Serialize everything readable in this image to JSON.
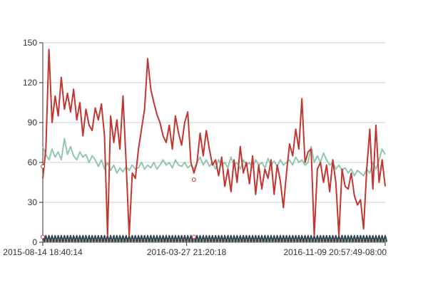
{
  "chart_data": {
    "type": "line",
    "title": "",
    "xlabel": "",
    "ylabel": "",
    "ylim": [
      0,
      150
    ],
    "yticks": [
      0,
      30,
      60,
      90,
      120,
      150
    ],
    "x_tick_labels": [
      "2015-08-14 18:40:14",
      "2016-03-27 21:20:18",
      "2016-11-09 20:57:49-08:00"
    ],
    "grid": true,
    "legend": "none",
    "series": [
      {
        "color": "#c23531",
        "points": [
          [
            0,
            48
          ],
          [
            1,
            70
          ],
          [
            2,
            145
          ],
          [
            3,
            90
          ],
          [
            4,
            110
          ],
          [
            5,
            95
          ],
          [
            6,
            124
          ],
          [
            7,
            100
          ],
          [
            8,
            112
          ],
          [
            9,
            98
          ],
          [
            10,
            115
          ],
          [
            11,
            92
          ],
          [
            12,
            105
          ],
          [
            13,
            80
          ],
          [
            14,
            100
          ],
          [
            15,
            88
          ],
          [
            16,
            84
          ],
          [
            17,
            101
          ],
          [
            18,
            92
          ],
          [
            19,
            104
          ],
          [
            20,
            80
          ],
          [
            21,
            5
          ],
          [
            22,
            95
          ],
          [
            23,
            75
          ],
          [
            24,
            92
          ],
          [
            25,
            70
          ],
          [
            26,
            110
          ],
          [
            27,
            60
          ],
          [
            28,
            5
          ],
          [
            29,
            52
          ],
          [
            30,
            48
          ],
          [
            31,
            70
          ],
          [
            32,
            85
          ],
          [
            33,
            100
          ],
          [
            34,
            138
          ],
          [
            35,
            115
          ],
          [
            36,
            105
          ],
          [
            37,
            96
          ],
          [
            38,
            90
          ],
          [
            39,
            80
          ],
          [
            40,
            75
          ],
          [
            41,
            88
          ],
          [
            42,
            70
          ],
          [
            43,
            95
          ],
          [
            44,
            82
          ],
          [
            45,
            73
          ],
          [
            46,
            90
          ],
          [
            47,
            98
          ],
          [
            48,
            60
          ],
          [
            49,
            52
          ],
          [
            50,
            60
          ],
          [
            51,
            82
          ],
          [
            52,
            65
          ],
          [
            53,
            84
          ],
          [
            54,
            70
          ],
          [
            55,
            58
          ],
          [
            56,
            62
          ],
          [
            57,
            50
          ],
          [
            58,
            64
          ],
          [
            59,
            42
          ],
          [
            60,
            55
          ],
          [
            61,
            38
          ],
          [
            62,
            62
          ],
          [
            63,
            45
          ],
          [
            64,
            72
          ],
          [
            65,
            52
          ],
          [
            66,
            60
          ],
          [
            67,
            44
          ],
          [
            68,
            65
          ],
          [
            69,
            36
          ],
          [
            70,
            58
          ],
          [
            71,
            40
          ],
          [
            72,
            55
          ],
          [
            73,
            48
          ],
          [
            74,
            62
          ],
          [
            75,
            36
          ],
          [
            76,
            58
          ],
          [
            77,
            46
          ],
          [
            78,
            26
          ],
          [
            79,
            52
          ],
          [
            80,
            74
          ],
          [
            81,
            65
          ],
          [
            82,
            85
          ],
          [
            83,
            70
          ],
          [
            84,
            108
          ],
          [
            85,
            60
          ],
          [
            86,
            68
          ],
          [
            87,
            70
          ],
          [
            88,
            5
          ],
          [
            89,
            55
          ],
          [
            90,
            60
          ],
          [
            91,
            45
          ],
          [
            92,
            58
          ],
          [
            93,
            38
          ],
          [
            94,
            62
          ],
          [
            95,
            45
          ],
          [
            96,
            5
          ],
          [
            97,
            55
          ],
          [
            98,
            42
          ],
          [
            99,
            40
          ],
          [
            100,
            52
          ],
          [
            101,
            35
          ],
          [
            102,
            28
          ],
          [
            103,
            32
          ],
          [
            104,
            10
          ],
          [
            105,
            55
          ],
          [
            106,
            85
          ],
          [
            107,
            40
          ],
          [
            108,
            88
          ],
          [
            109,
            45
          ],
          [
            110,
            62
          ],
          [
            111,
            42
          ]
        ]
      },
      {
        "color": "#91c7ae",
        "points": [
          [
            0,
            72
          ],
          [
            1,
            66
          ],
          [
            2,
            62
          ],
          [
            3,
            70
          ],
          [
            4,
            64
          ],
          [
            5,
            68
          ],
          [
            6,
            62
          ],
          [
            7,
            78
          ],
          [
            8,
            66
          ],
          [
            9,
            72
          ],
          [
            10,
            65
          ],
          [
            11,
            62
          ],
          [
            12,
            68
          ],
          [
            13,
            64
          ],
          [
            14,
            66
          ],
          [
            15,
            60
          ],
          [
            16,
            65
          ],
          [
            17,
            62
          ],
          [
            18,
            57
          ],
          [
            19,
            62
          ],
          [
            20,
            55
          ],
          [
            21,
            60
          ],
          [
            22,
            54
          ],
          [
            23,
            58
          ],
          [
            24,
            52
          ],
          [
            25,
            56
          ],
          [
            26,
            53
          ],
          [
            27,
            57
          ],
          [
            28,
            54
          ],
          [
            29,
            58
          ],
          [
            30,
            55
          ],
          [
            31,
            56
          ],
          [
            32,
            60
          ],
          [
            33,
            55
          ],
          [
            34,
            58
          ],
          [
            35,
            56
          ],
          [
            36,
            60
          ],
          [
            37,
            55
          ],
          [
            38,
            58
          ],
          [
            39,
            62
          ],
          [
            40,
            58
          ],
          [
            41,
            60
          ],
          [
            42,
            56
          ],
          [
            43,
            62
          ],
          [
            44,
            58
          ],
          [
            45,
            57
          ],
          [
            46,
            60
          ],
          [
            47,
            56
          ],
          [
            48,
            58
          ],
          [
            49,
            55
          ],
          [
            50,
            60
          ],
          [
            51,
            64
          ],
          [
            52,
            58
          ],
          [
            53,
            62
          ],
          [
            54,
            57
          ],
          [
            55,
            60
          ],
          [
            56,
            55
          ],
          [
            57,
            62
          ],
          [
            58,
            58
          ],
          [
            59,
            60
          ],
          [
            60,
            56
          ],
          [
            61,
            64
          ],
          [
            62,
            58
          ],
          [
            63,
            60
          ],
          [
            64,
            55
          ],
          [
            65,
            62
          ],
          [
            66,
            58
          ],
          [
            67,
            60
          ],
          [
            68,
            56
          ],
          [
            69,
            62
          ],
          [
            70,
            58
          ],
          [
            71,
            60
          ],
          [
            72,
            56
          ],
          [
            73,
            63
          ],
          [
            74,
            58
          ],
          [
            75,
            61
          ],
          [
            76,
            57
          ],
          [
            77,
            62
          ],
          [
            78,
            58
          ],
          [
            79,
            60
          ],
          [
            80,
            62
          ],
          [
            81,
            58
          ],
          [
            82,
            64
          ],
          [
            83,
            60
          ],
          [
            84,
            62
          ],
          [
            85,
            58
          ],
          [
            86,
            60
          ],
          [
            87,
            72
          ],
          [
            88,
            60
          ],
          [
            89,
            65
          ],
          [
            90,
            60
          ],
          [
            91,
            67
          ],
          [
            92,
            62
          ],
          [
            93,
            58
          ],
          [
            94,
            60
          ],
          [
            95,
            55
          ],
          [
            96,
            58
          ],
          [
            97,
            54
          ],
          [
            98,
            56
          ],
          [
            99,
            52
          ],
          [
            100,
            55
          ],
          [
            101,
            50
          ],
          [
            102,
            54
          ],
          [
            103,
            52
          ],
          [
            104,
            50
          ],
          [
            105,
            55
          ],
          [
            106,
            52
          ],
          [
            107,
            60
          ],
          [
            108,
            55
          ],
          [
            109,
            62
          ],
          [
            110,
            70
          ],
          [
            111,
            66
          ]
        ]
      },
      {
        "color": "#2f4554",
        "points": "sawtooth baseline between 0 and 5"
      },
      {
        "color": "#d48265",
        "points": "flat near 1"
      },
      {
        "color": "#749f83",
        "points": "flat near 0"
      }
    ]
  }
}
